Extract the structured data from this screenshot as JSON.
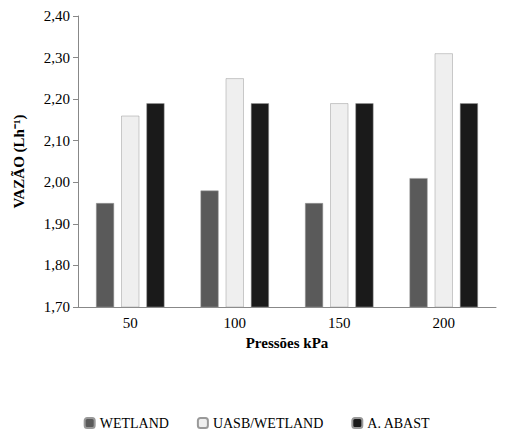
{
  "chart_data": {
    "type": "bar",
    "categories": [
      "50",
      "100",
      "150",
      "200"
    ],
    "series": [
      {
        "name": "WETLAND",
        "color": "#5a5a5a",
        "values": [
          1.95,
          1.98,
          1.95,
          2.01
        ]
      },
      {
        "name": "UASB/WETLAND",
        "color": "#efefef",
        "values": [
          2.16,
          2.25,
          2.19,
          2.31
        ]
      },
      {
        "name": "A. ABAST",
        "color": "#1a1a1a",
        "values": [
          2.19,
          2.19,
          2.19,
          2.19
        ]
      }
    ],
    "x_label": "Pressões kPa",
    "y_label": "VAZÃO (Lh⁻¹)",
    "ylim": [
      1.7,
      2.4
    ],
    "yticks": [
      {
        "value": 1.7,
        "label": "1,70"
      },
      {
        "value": 1.8,
        "label": "1,80"
      },
      {
        "value": 1.9,
        "label": "1,90"
      },
      {
        "value": 2.0,
        "label": "2,00"
      },
      {
        "value": 2.1,
        "label": "2,10"
      },
      {
        "value": 2.2,
        "label": "2,20"
      },
      {
        "value": 2.3,
        "label": "2,30"
      },
      {
        "value": 2.4,
        "label": "2,40"
      }
    ],
    "grid": false,
    "legend": "bottom"
  }
}
